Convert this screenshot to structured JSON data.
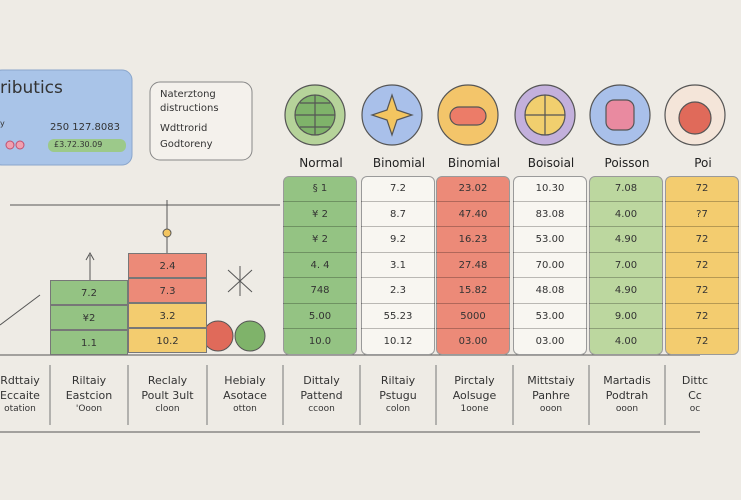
{
  "cards": [
    {
      "title": "ributics",
      "note": "y",
      "lines": [
        "250 127.8083"
      ],
      "pill": "£3.72.30.09"
    },
    {
      "lines": [
        "Naterztong",
        "distructions",
        "Wdttrorid",
        "Godtoreny"
      ]
    }
  ],
  "columns": [
    "Normal",
    "Binomial",
    "Binomial",
    "Boisoial",
    "Poisson",
    "Poi"
  ],
  "table": {
    "rows": [
      [
        "§ 1",
        "7.2",
        "23.02",
        "10.30",
        "7.08",
        "72"
      ],
      [
        "¥ 2",
        "8.7",
        "47.40",
        "83.08",
        "4.00",
        "?7"
      ],
      [
        "¥ 2",
        "9.2",
        "16.23",
        "53.00",
        "4.90",
        "72"
      ],
      [
        "4. 4",
        "3.1",
        "27.48",
        "70.00",
        "7.00",
        "72"
      ],
      [
        "748",
        "2.3",
        "15.82",
        "48.08",
        "4.90",
        "72"
      ],
      [
        "5.00",
        "55.23",
        "5000",
        "53.00",
        "9.00",
        "72"
      ],
      [
        "10.0",
        "10.12",
        "03.00",
        "03.00",
        "4.00",
        "72"
      ]
    ]
  },
  "left_blocks": {
    "green": [
      "7.2",
      "¥2",
      "1.1"
    ],
    "stack": [
      "2.4",
      "7.3",
      "3.2",
      "10.2"
    ]
  },
  "footer": [
    [
      "Rdttaiy",
      "Eccaite",
      "otation"
    ],
    [
      "Riltaiy",
      "Eastcion",
      "'Ooon"
    ],
    [
      "Reclaly",
      "Poult 3ult",
      "cloon"
    ],
    [
      "Hebialy",
      "Asotace",
      "otton"
    ],
    [
      "Dittaly",
      "Pattend",
      "ccoon"
    ],
    [
      "Riltaiy",
      "Pstugu",
      "colon"
    ],
    [
      "Pirctaly",
      "Aolsuge",
      "1oone"
    ],
    [
      "Mittstaiy",
      "Panhre",
      "ooon"
    ],
    [
      "Martadis",
      "Podtrah",
      "ooon"
    ],
    [
      "Dittc",
      "Cc",
      "oc"
    ]
  ]
}
